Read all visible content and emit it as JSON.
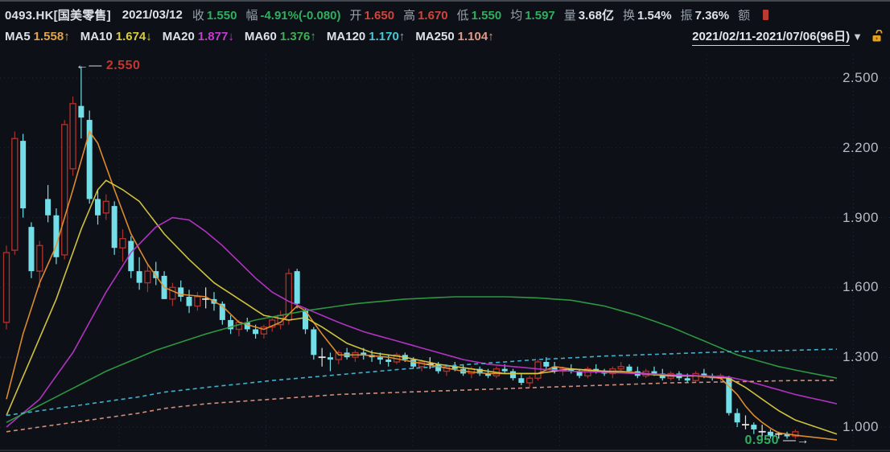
{
  "header": {
    "symbol": "0493.HK[国美零售]",
    "date": "2021/03/12",
    "fields": [
      {
        "label": "收",
        "value": "1.550",
        "tone": "green"
      },
      {
        "label": "幅",
        "value": "-4.91%(-0.080)",
        "tone": "green"
      },
      {
        "label": "开",
        "value": "1.650",
        "tone": "red"
      },
      {
        "label": "高",
        "value": "1.670",
        "tone": "red"
      },
      {
        "label": "低",
        "value": "1.550",
        "tone": "green"
      },
      {
        "label": "均",
        "value": "1.597",
        "tone": "green"
      },
      {
        "label": "量",
        "value": "3.68亿",
        "tone": "white"
      },
      {
        "label": "换",
        "value": "1.54%",
        "tone": "white"
      },
      {
        "label": "振",
        "value": "7.36%",
        "tone": "white"
      },
      {
        "label": "额",
        "value": "",
        "tone": "red"
      }
    ]
  },
  "ma_bar": [
    {
      "label": "MA5",
      "value": "1.558",
      "arrow": "↑",
      "color": "#e2a44c"
    },
    {
      "label": "MA10",
      "value": "1.674",
      "arrow": "↓",
      "color": "#d9cb3f"
    },
    {
      "label": "MA20",
      "value": "1.877",
      "arrow": "↓",
      "color": "#c43bd0"
    },
    {
      "label": "MA60",
      "value": "1.376",
      "arrow": "↑",
      "color": "#3fae52"
    },
    {
      "label": "MA120",
      "value": "1.170",
      "arrow": "↑",
      "color": "#45c8d8"
    },
    {
      "label": "MA250",
      "value": "1.104",
      "arrow": "↑",
      "color": "#e09a86"
    }
  ],
  "range": {
    "label": "2021/02/11-2021/07/06(96日)",
    "dropdown_icon": "▼"
  },
  "chart_data": {
    "type": "candlestick",
    "title": "0493.HK 国美零售 daily K-line",
    "date_start": "2021/02/11",
    "date_end": "2021/07/06",
    "num_days": 96,
    "y_axis": {
      "ticks": [
        2.5,
        2.2,
        1.9,
        1.6,
        1.3,
        1.0
      ],
      "ylim": [
        0.885,
        2.635
      ],
      "grid": true
    },
    "annotations": {
      "high": {
        "text": "2.550",
        "price": 2.55,
        "day_index": 9,
        "color": "#c6352c"
      },
      "low": {
        "text": "0.950",
        "price": 0.95,
        "day_index": 92,
        "color": "#2fae60"
      }
    },
    "colors": {
      "up": "#a8312b",
      "down": "#74dee8",
      "doji": "#e3e3e3",
      "background": "#0d1016",
      "grid": "#273545"
    },
    "candles_ohlc": [
      [
        1.45,
        1.78,
        1.42,
        1.75
      ],
      [
        1.76,
        2.27,
        1.74,
        2.24
      ],
      [
        2.23,
        2.26,
        1.9,
        1.94
      ],
      [
        1.86,
        1.88,
        1.64,
        1.67
      ],
      [
        1.67,
        1.8,
        1.6,
        1.78
      ],
      [
        1.98,
        2.04,
        1.88,
        1.91
      ],
      [
        1.91,
        1.94,
        1.7,
        1.73
      ],
      [
        1.74,
        2.32,
        1.72,
        2.3
      ],
      [
        2.11,
        2.42,
        2.08,
        2.39
      ],
      [
        2.38,
        2.55,
        2.24,
        2.33
      ],
      [
        2.32,
        2.36,
        1.96,
        1.98
      ],
      [
        1.98,
        2.02,
        1.87,
        1.91
      ],
      [
        1.92,
        2.0,
        1.89,
        1.97
      ],
      [
        1.95,
        1.97,
        1.74,
        1.77
      ],
      [
        1.77,
        1.85,
        1.71,
        1.81
      ],
      [
        1.8,
        1.82,
        1.64,
        1.67
      ],
      [
        1.67,
        1.73,
        1.59,
        1.62
      ],
      [
        1.62,
        1.7,
        1.58,
        1.67
      ],
      [
        1.67,
        1.71,
        1.61,
        1.64
      ],
      [
        1.65,
        1.67,
        1.55,
        1.55
      ],
      [
        1.55,
        1.62,
        1.52,
        1.6
      ],
      [
        1.6,
        1.63,
        1.54,
        1.56
      ],
      [
        1.56,
        1.59,
        1.49,
        1.52
      ],
      [
        1.52,
        1.58,
        1.5,
        1.56
      ],
      [
        1.55,
        1.6,
        1.51,
        1.55
      ],
      [
        1.55,
        1.58,
        1.5,
        1.53
      ],
      [
        1.53,
        1.54,
        1.44,
        1.46
      ],
      [
        1.46,
        1.48,
        1.4,
        1.42
      ],
      [
        1.42,
        1.46,
        1.39,
        1.45
      ],
      [
        1.45,
        1.47,
        1.41,
        1.42
      ],
      [
        1.42,
        1.44,
        1.38,
        1.4
      ],
      [
        1.4,
        1.44,
        1.38,
        1.43
      ],
      [
        1.43,
        1.47,
        1.41,
        1.46
      ],
      [
        1.44,
        1.5,
        1.42,
        1.48
      ],
      [
        1.46,
        1.68,
        1.44,
        1.66
      ],
      [
        1.67,
        1.68,
        1.51,
        1.53
      ],
      [
        1.5,
        1.51,
        1.4,
        1.42
      ],
      [
        1.42,
        1.43,
        1.29,
        1.31
      ],
      [
        1.3,
        1.34,
        1.26,
        1.3
      ],
      [
        1.3,
        1.32,
        1.24,
        1.29
      ],
      [
        1.29,
        1.33,
        1.27,
        1.32
      ],
      [
        1.32,
        1.34,
        1.29,
        1.3
      ],
      [
        1.3,
        1.33,
        1.28,
        1.32
      ],
      [
        1.32,
        1.34,
        1.29,
        1.31
      ],
      [
        1.31,
        1.33,
        1.28,
        1.3
      ],
      [
        1.3,
        1.32,
        1.27,
        1.29
      ],
      [
        1.29,
        1.31,
        1.26,
        1.28
      ],
      [
        1.28,
        1.32,
        1.27,
        1.31
      ],
      [
        1.31,
        1.32,
        1.28,
        1.29
      ],
      [
        1.29,
        1.3,
        1.25,
        1.26
      ],
      [
        1.26,
        1.29,
        1.24,
        1.28
      ],
      [
        1.27,
        1.3,
        1.25,
        1.27
      ],
      [
        1.27,
        1.28,
        1.23,
        1.24
      ],
      [
        1.24,
        1.27,
        1.22,
        1.26
      ],
      [
        1.26,
        1.28,
        1.24,
        1.25
      ],
      [
        1.25,
        1.27,
        1.22,
        1.23
      ],
      [
        1.23,
        1.26,
        1.21,
        1.25
      ],
      [
        1.25,
        1.26,
        1.22,
        1.23
      ],
      [
        1.23,
        1.25,
        1.21,
        1.22
      ],
      [
        1.22,
        1.26,
        1.21,
        1.25
      ],
      [
        1.25,
        1.27,
        1.23,
        1.24
      ],
      [
        1.24,
        1.25,
        1.2,
        1.21
      ],
      [
        1.21,
        1.23,
        1.18,
        1.19
      ],
      [
        1.19,
        1.22,
        1.17,
        1.21
      ],
      [
        1.21,
        1.29,
        1.2,
        1.28
      ],
      [
        1.28,
        1.3,
        1.25,
        1.26
      ],
      [
        1.26,
        1.28,
        1.23,
        1.24
      ],
      [
        1.24,
        1.26,
        1.22,
        1.25
      ],
      [
        1.25,
        1.27,
        1.23,
        1.24
      ],
      [
        1.24,
        1.25,
        1.21,
        1.22
      ],
      [
        1.22,
        1.26,
        1.21,
        1.25
      ],
      [
        1.25,
        1.27,
        1.23,
        1.24
      ],
      [
        1.24,
        1.25,
        1.22,
        1.23
      ],
      [
        1.23,
        1.26,
        1.21,
        1.25
      ],
      [
        1.25,
        1.28,
        1.23,
        1.26
      ],
      [
        1.26,
        1.27,
        1.23,
        1.24
      ],
      [
        1.24,
        1.26,
        1.21,
        1.22
      ],
      [
        1.22,
        1.25,
        1.21,
        1.24
      ],
      [
        1.24,
        1.26,
        1.22,
        1.23
      ],
      [
        1.23,
        1.25,
        1.2,
        1.21
      ],
      [
        1.21,
        1.24,
        1.2,
        1.23
      ],
      [
        1.23,
        1.24,
        1.2,
        1.21
      ],
      [
        1.21,
        1.23,
        1.19,
        1.2
      ],
      [
        1.2,
        1.24,
        1.19,
        1.23
      ],
      [
        1.23,
        1.25,
        1.21,
        1.22
      ],
      [
        1.22,
        1.23,
        1.2,
        1.21
      ],
      [
        1.21,
        1.23,
        1.19,
        1.22
      ],
      [
        1.21,
        1.22,
        1.05,
        1.06
      ],
      [
        1.06,
        1.08,
        1.0,
        1.02
      ],
      [
        1.01,
        1.05,
        0.99,
        1.01
      ],
      [
        1.01,
        1.02,
        0.97,
        0.99
      ],
      [
        0.98,
        1.01,
        0.96,
        0.98
      ],
      [
        0.98,
        0.99,
        0.95,
        0.96
      ],
      [
        0.97,
        0.98,
        0.95,
        0.97
      ],
      [
        0.97,
        0.98,
        0.95,
        0.96
      ],
      [
        0.96,
        0.99,
        0.95,
        0.98
      ]
    ],
    "ma_series": [
      {
        "name": "MA5",
        "color": "#e8912f",
        "dashed": false,
        "points": [
          [
            0,
            1.12
          ],
          [
            2,
            1.4
          ],
          [
            4,
            1.62
          ],
          [
            6,
            1.78
          ],
          [
            8,
            2.02
          ],
          [
            10,
            2.27
          ],
          [
            11,
            2.22
          ],
          [
            13,
            2.02
          ],
          [
            15,
            1.83
          ],
          [
            17,
            1.7
          ],
          [
            19,
            1.6
          ],
          [
            21,
            1.57
          ],
          [
            24,
            1.56
          ],
          [
            26,
            1.52
          ],
          [
            28,
            1.45
          ],
          [
            31,
            1.42
          ],
          [
            33,
            1.45
          ],
          [
            35,
            1.52
          ],
          [
            36,
            1.5
          ],
          [
            38,
            1.4
          ],
          [
            40,
            1.31
          ],
          [
            43,
            1.31
          ],
          [
            46,
            1.3
          ],
          [
            49,
            1.28
          ],
          [
            52,
            1.26
          ],
          [
            55,
            1.24
          ],
          [
            58,
            1.23
          ],
          [
            61,
            1.23
          ],
          [
            64,
            1.23
          ],
          [
            66,
            1.26
          ],
          [
            68,
            1.25
          ],
          [
            71,
            1.24
          ],
          [
            74,
            1.24
          ],
          [
            77,
            1.23
          ],
          [
            80,
            1.22
          ],
          [
            83,
            1.22
          ],
          [
            86,
            1.21
          ],
          [
            88,
            1.14
          ],
          [
            89,
            1.09
          ],
          [
            90,
            1.05
          ],
          [
            91,
            1.02
          ],
          [
            92,
            0.995
          ],
          [
            93,
            0.975
          ],
          [
            95,
            0.965
          ],
          [
            100,
            0.945
          ]
        ]
      },
      {
        "name": "MA10",
        "color": "#d9cb3f",
        "dashed": false,
        "points": [
          [
            0,
            1.05
          ],
          [
            3,
            1.3
          ],
          [
            6,
            1.55
          ],
          [
            9,
            1.85
          ],
          [
            11,
            2.02
          ],
          [
            12,
            2.06
          ],
          [
            14,
            2.02
          ],
          [
            16,
            1.97
          ],
          [
            19,
            1.83
          ],
          [
            22,
            1.72
          ],
          [
            25,
            1.62
          ],
          [
            28,
            1.55
          ],
          [
            31,
            1.48
          ],
          [
            34,
            1.46
          ],
          [
            36,
            1.47
          ],
          [
            38,
            1.43
          ],
          [
            41,
            1.36
          ],
          [
            44,
            1.32
          ],
          [
            48,
            1.3
          ],
          [
            52,
            1.27
          ],
          [
            56,
            1.25
          ],
          [
            60,
            1.23
          ],
          [
            64,
            1.23
          ],
          [
            68,
            1.25
          ],
          [
            72,
            1.24
          ],
          [
            76,
            1.23
          ],
          [
            80,
            1.22
          ],
          [
            84,
            1.22
          ],
          [
            87,
            1.21
          ],
          [
            89,
            1.17
          ],
          [
            91,
            1.12
          ],
          [
            93,
            1.07
          ],
          [
            95,
            1.03
          ],
          [
            100,
            0.97
          ]
        ]
      },
      {
        "name": "MA20",
        "color": "#bb35c9",
        "dashed": false,
        "points": [
          [
            0,
            1.0
          ],
          [
            4,
            1.12
          ],
          [
            8,
            1.32
          ],
          [
            12,
            1.58
          ],
          [
            15,
            1.75
          ],
          [
            18,
            1.86
          ],
          [
            20,
            1.9
          ],
          [
            22,
            1.89
          ],
          [
            24,
            1.84
          ],
          [
            26,
            1.78
          ],
          [
            28,
            1.71
          ],
          [
            30,
            1.64
          ],
          [
            32,
            1.58
          ],
          [
            34,
            1.54
          ],
          [
            36,
            1.51
          ],
          [
            38,
            1.48
          ],
          [
            40,
            1.45
          ],
          [
            43,
            1.41
          ],
          [
            46,
            1.38
          ],
          [
            49,
            1.35
          ],
          [
            52,
            1.32
          ],
          [
            55,
            1.29
          ],
          [
            58,
            1.27
          ],
          [
            61,
            1.26
          ],
          [
            64,
            1.25
          ],
          [
            68,
            1.24
          ],
          [
            72,
            1.235
          ],
          [
            76,
            1.23
          ],
          [
            80,
            1.225
          ],
          [
            84,
            1.22
          ],
          [
            87,
            1.215
          ],
          [
            89,
            1.2
          ],
          [
            91,
            1.18
          ],
          [
            93,
            1.16
          ],
          [
            95,
            1.14
          ],
          [
            100,
            1.1
          ]
        ]
      },
      {
        "name": "MA60",
        "color": "#2f9e45",
        "dashed": false,
        "points": [
          [
            0,
            1.02
          ],
          [
            6,
            1.13
          ],
          [
            12,
            1.24
          ],
          [
            18,
            1.33
          ],
          [
            24,
            1.4
          ],
          [
            30,
            1.46
          ],
          [
            36,
            1.5
          ],
          [
            42,
            1.53
          ],
          [
            48,
            1.55
          ],
          [
            54,
            1.56
          ],
          [
            60,
            1.56
          ],
          [
            64,
            1.555
          ],
          [
            68,
            1.545
          ],
          [
            72,
            1.52
          ],
          [
            76,
            1.48
          ],
          [
            80,
            1.43
          ],
          [
            84,
            1.37
          ],
          [
            88,
            1.31
          ],
          [
            91,
            1.28
          ],
          [
            93,
            1.26
          ],
          [
            95,
            1.245
          ],
          [
            100,
            1.21
          ]
        ]
      },
      {
        "name": "MA120",
        "color": "#45b9d8",
        "dashed": true,
        "points": [
          [
            0,
            1.05
          ],
          [
            8,
            1.09
          ],
          [
            16,
            1.13
          ],
          [
            19,
            1.15
          ],
          [
            24,
            1.17
          ],
          [
            32,
            1.2
          ],
          [
            40,
            1.225
          ],
          [
            48,
            1.25
          ],
          [
            56,
            1.27
          ],
          [
            64,
            1.29
          ],
          [
            72,
            1.305
          ],
          [
            80,
            1.315
          ],
          [
            88,
            1.325
          ],
          [
            95,
            1.33
          ],
          [
            100,
            1.335
          ]
        ]
      },
      {
        "name": "MA250",
        "color": "#dd9480",
        "dashed": true,
        "points": [
          [
            0,
            0.98
          ],
          [
            8,
            1.02
          ],
          [
            16,
            1.06
          ],
          [
            19,
            1.08
          ],
          [
            24,
            1.1
          ],
          [
            32,
            1.12
          ],
          [
            40,
            1.14
          ],
          [
            48,
            1.15
          ],
          [
            56,
            1.16
          ],
          [
            64,
            1.17
          ],
          [
            72,
            1.18
          ],
          [
            80,
            1.19
          ],
          [
            88,
            1.195
          ],
          [
            95,
            1.2
          ],
          [
            100,
            1.2
          ]
        ]
      }
    ],
    "vertical_gridlines_x": [
      148,
      330.5,
      513,
      695.5,
      878,
      1060.5
    ],
    "legend_position": "top-bar"
  }
}
